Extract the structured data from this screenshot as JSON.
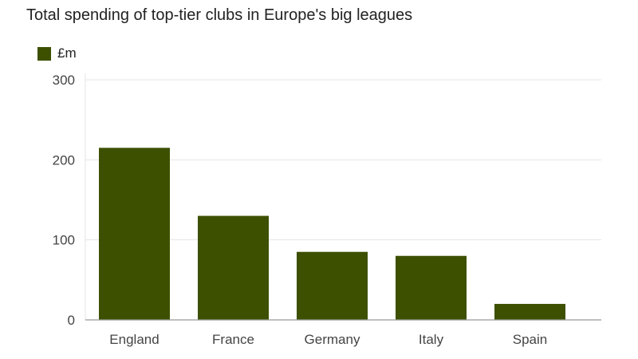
{
  "chart_data": {
    "type": "bar",
    "title": "Total spending of top-tier clubs in Europe's big leagues",
    "legend": [
      {
        "name": "£m",
        "color": "#3d5000"
      }
    ],
    "categories": [
      "England",
      "France",
      "Germany",
      "Italy",
      "Spain"
    ],
    "series": [
      {
        "name": "£m",
        "values": [
          215,
          130,
          85,
          80,
          20
        ]
      }
    ],
    "xlabel": "",
    "ylabel": "",
    "ylim": [
      0,
      300
    ],
    "yticks": [
      "0",
      "100",
      "200",
      "300"
    ],
    "grid": true,
    "legend_position": "top-left"
  }
}
